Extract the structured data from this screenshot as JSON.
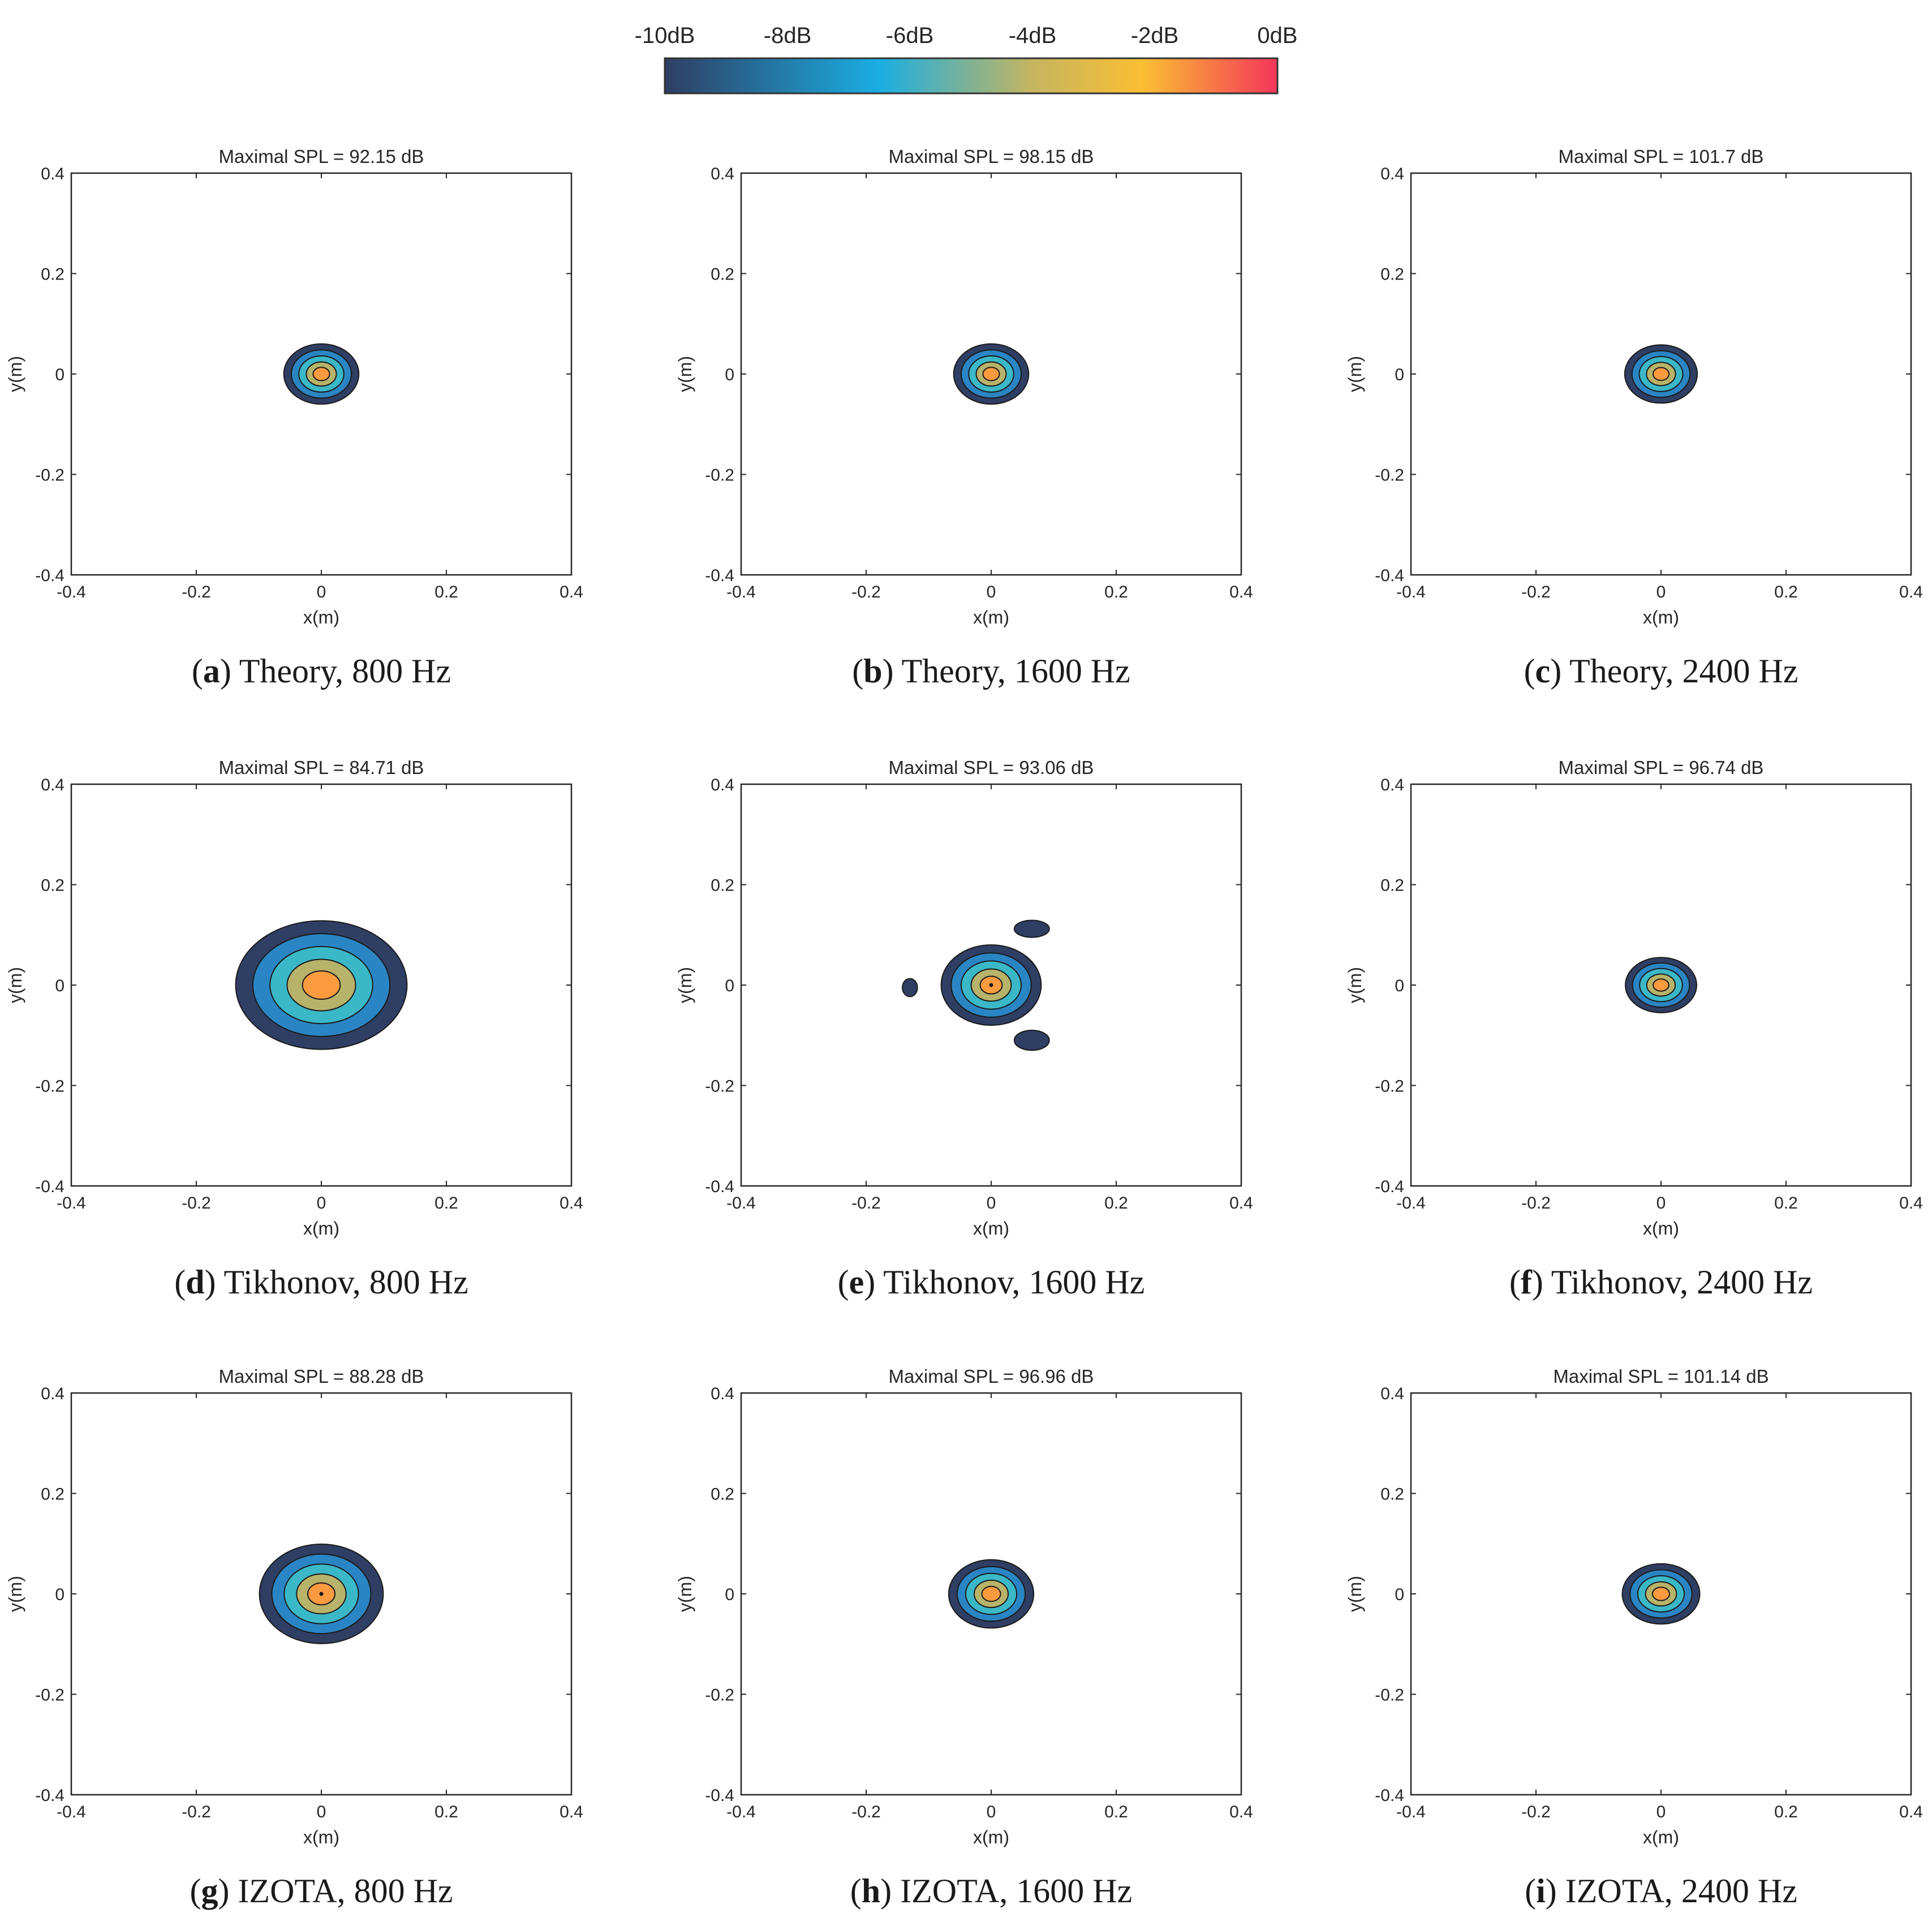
{
  "colorbar": {
    "tick_labels": [
      "-10dB",
      "-8dB",
      "-6dB",
      "-4dB",
      "-2dB",
      "0dB"
    ],
    "range_db": [
      -10,
      0
    ],
    "colors": [
      "#2f3e63",
      "#1aaee3",
      "#c5b560",
      "#fbbf33",
      "#f4365a"
    ]
  },
  "contour_colors": [
    "#2f3e63",
    "#2a85c4",
    "#3bb8c8",
    "#b8b36a",
    "#fb9a3f"
  ],
  "chart_data": [
    {
      "type": "contour",
      "id": "a",
      "title": "Maximal SPL = 92.15 dB",
      "caption_letter": "a",
      "caption_text": " Theory, 800 Hz",
      "xlabel": "x(m)",
      "ylabel": "y(m)",
      "xlim": [
        -0.4,
        0.4
      ],
      "ylim": [
        -0.4,
        0.4
      ],
      "xticks": [
        "-0.4",
        "-0.2",
        "0",
        "0.2",
        "0.4"
      ],
      "yticks": [
        "0.4",
        "0.2",
        "0",
        "-0.2",
        "-0.4"
      ],
      "source": {
        "x": 0.0,
        "y": 0.0,
        "rx": 0.06,
        "ry": 0.06
      },
      "lobes": [],
      "center_dot": false
    },
    {
      "type": "contour",
      "id": "b",
      "title": "Maximal SPL = 98.15 dB",
      "caption_letter": "b",
      "caption_text": " Theory, 1600 Hz",
      "xlabel": "x(m)",
      "ylabel": "y(m)",
      "xlim": [
        -0.4,
        0.4
      ],
      "ylim": [
        -0.4,
        0.4
      ],
      "xticks": [
        "-0.4",
        "-0.2",
        "0",
        "0.2",
        "0.4"
      ],
      "yticks": [
        "0.4",
        "0.2",
        "0",
        "-0.2",
        "-0.4"
      ],
      "source": {
        "x": 0.0,
        "y": 0.0,
        "rx": 0.06,
        "ry": 0.06
      },
      "lobes": [],
      "center_dot": false
    },
    {
      "type": "contour",
      "id": "c",
      "title": "Maximal SPL = 101.7 dB",
      "caption_letter": "c",
      "caption_text": " Theory, 2400 Hz",
      "xlabel": "x(m)",
      "ylabel": "y(m)",
      "xlim": [
        -0.4,
        0.4
      ],
      "ylim": [
        -0.4,
        0.4
      ],
      "xticks": [
        "-0.4",
        "-0.2",
        "0",
        "0.2",
        "0.4"
      ],
      "yticks": [
        "0.4",
        "0.2",
        "0",
        "-0.2",
        "-0.4"
      ],
      "source": {
        "x": 0.0,
        "y": 0.0,
        "rx": 0.058,
        "ry": 0.058
      },
      "lobes": [],
      "center_dot": false
    },
    {
      "type": "contour",
      "id": "d",
      "title": "Maximal SPL = 84.71 dB",
      "caption_letter": "d",
      "caption_text": " Tikhonov, 800 Hz",
      "xlabel": "x(m)",
      "ylabel": "y(m)",
      "xlim": [
        -0.4,
        0.4
      ],
      "ylim": [
        -0.4,
        0.4
      ],
      "xticks": [
        "-0.4",
        "-0.2",
        "0",
        "0.2",
        "0.4"
      ],
      "yticks": [
        "0.4",
        "0.2",
        "0",
        "-0.2",
        "-0.4"
      ],
      "source": {
        "x": 0.0,
        "y": 0.0,
        "rx": 0.137,
        "ry": 0.128
      },
      "lobes": [],
      "center_dot": false
    },
    {
      "type": "contour",
      "id": "e",
      "title": "Maximal SPL = 93.06 dB",
      "caption_letter": "e",
      "caption_text": " Tikhonov, 1600 Hz",
      "xlabel": "x(m)",
      "ylabel": "y(m)",
      "xlim": [
        -0.4,
        0.4
      ],
      "ylim": [
        -0.4,
        0.4
      ],
      "xticks": [
        "-0.4",
        "-0.2",
        "0",
        "0.2",
        "0.4"
      ],
      "yticks": [
        "0.4",
        "0.2",
        "0",
        "-0.2",
        "-0.4"
      ],
      "source": {
        "x": 0.0,
        "y": 0.0,
        "rx": 0.08,
        "ry": 0.08
      },
      "lobes": [
        {
          "x": -0.13,
          "y": -0.005,
          "rx": 0.012,
          "ry": 0.018
        },
        {
          "x": 0.065,
          "y": 0.112,
          "rx": 0.028,
          "ry": 0.017
        },
        {
          "x": 0.065,
          "y": -0.11,
          "rx": 0.028,
          "ry": 0.02
        }
      ],
      "center_dot": true
    },
    {
      "type": "contour",
      "id": "f",
      "title": "Maximal SPL = 96.74 dB",
      "caption_letter": "f",
      "caption_text": " Tikhonov, 2400 Hz",
      "xlabel": "x(m)",
      "ylabel": "y(m)",
      "xlim": [
        -0.4,
        0.4
      ],
      "ylim": [
        -0.4,
        0.4
      ],
      "xticks": [
        "-0.4",
        "-0.2",
        "0",
        "0.2",
        "0.4"
      ],
      "yticks": [
        "0.4",
        "0.2",
        "0",
        "-0.2",
        "-0.4"
      ],
      "source": {
        "x": 0.0,
        "y": 0.0,
        "rx": 0.057,
        "ry": 0.055
      },
      "lobes": [],
      "center_dot": false
    },
    {
      "type": "contour",
      "id": "g",
      "title": "Maximal SPL = 88.28 dB",
      "caption_letter": "g",
      "caption_text": " IZOTA, 800 Hz",
      "xlabel": "x(m)",
      "ylabel": "y(m)",
      "xlim": [
        -0.4,
        0.4
      ],
      "ylim": [
        -0.4,
        0.4
      ],
      "xticks": [
        "-0.4",
        "-0.2",
        "0",
        "0.2",
        "0.4"
      ],
      "yticks": [
        "0.4",
        "0.2",
        "0",
        "-0.2",
        "-0.4"
      ],
      "source": {
        "x": 0.0,
        "y": 0.0,
        "rx": 0.099,
        "ry": 0.099
      },
      "lobes": [],
      "center_dot": true
    },
    {
      "type": "contour",
      "id": "h",
      "title": "Maximal SPL = 96.96 dB",
      "caption_letter": "h",
      "caption_text": " IZOTA, 1600 Hz",
      "xlabel": "x(m)",
      "ylabel": "y(m)",
      "xlim": [
        -0.4,
        0.4
      ],
      "ylim": [
        -0.4,
        0.4
      ],
      "xticks": [
        "-0.4",
        "-0.2",
        "0",
        "0.2",
        "0.4"
      ],
      "yticks": [
        "0.4",
        "0.2",
        "0",
        "-0.2",
        "-0.4"
      ],
      "source": {
        "x": 0.0,
        "y": 0.0,
        "rx": 0.068,
        "ry": 0.068
      },
      "lobes": [],
      "center_dot": false
    },
    {
      "type": "contour",
      "id": "i",
      "title": "Maximal SPL = 101.14 dB",
      "caption_letter": "i",
      "caption_text": " IZOTA, 2400 Hz",
      "xlabel": "x(m)",
      "ylabel": "y(m)",
      "xlim": [
        -0.4,
        0.4
      ],
      "ylim": [
        -0.4,
        0.4
      ],
      "xticks": [
        "-0.4",
        "-0.2",
        "0",
        "0.2",
        "0.4"
      ],
      "yticks": [
        "0.4",
        "0.2",
        "0",
        "-0.2",
        "-0.4"
      ],
      "source": {
        "x": 0.0,
        "y": 0.0,
        "rx": 0.062,
        "ry": 0.06
      },
      "lobes": [],
      "center_dot": false
    }
  ]
}
